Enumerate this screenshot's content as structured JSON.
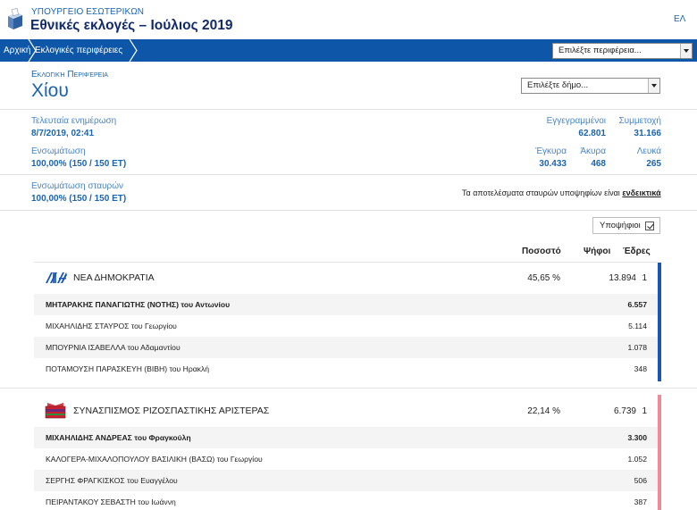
{
  "header": {
    "ministry": "ΥΠΟΥΡΓΕΙΟ ΕΣΩΤΕΡΙΚΩΝ",
    "title": "Εθνικές εκλογές – Ιούλιος 2019",
    "lang": "ΕΛ"
  },
  "breadcrumb": {
    "home": "Αρχική",
    "regions": "Εκλογικές περιφέρειες",
    "region_select_placeholder": "Επιλέξτε περιφέρεια..."
  },
  "region": {
    "label": "Εκλογική Περιφέρεια",
    "name": "Χίου",
    "municipality_select_placeholder": "Επιλέξτε δήμο..."
  },
  "stats": {
    "last_update_label": "Τελευταία ενημέρωση",
    "last_update_value": "8/7/2019, 02:41",
    "integration_label": "Ενσωμάτωση",
    "integration_value": "100,00% (150 / 150 ΕΤ)",
    "registered_label": "Εγγεγραμμένοι",
    "registered_value": "62.801",
    "turnout_label": "Συμμετοχή",
    "turnout_value": "31.166",
    "valid_label": "Έγκυρα",
    "valid_value": "30.433",
    "invalid_label": "Άκυρα",
    "invalid_value": "468",
    "blank_label": "Λευκά",
    "blank_value": "265",
    "crosses_label": "Ενσωμάτωση σταυρών",
    "crosses_value": "100,00% (150 / 150 ΕΤ)",
    "crosses_note_prefix": "Τα αποτελέσματα σταυρών υποψηφίων είναι",
    "crosses_note_link": "ενδεικτικά"
  },
  "results": {
    "candidates_toggle": "Υποψήφιοι",
    "col_percent": "Ποσοστό",
    "col_votes": "Ψήφοι",
    "col_seats": "Έδρες",
    "parties": [
      {
        "name": "ΝΕΑ ΔΗΜΟΚΡΑΤΙΑ",
        "percent": "45,65 %",
        "votes": "13.894",
        "seats": "1",
        "color": "#1a56b5",
        "candidates": [
          {
            "name": "ΜΗΤΑΡΑΚΗΣ ΠΑΝΑΓΙΩΤΗΣ (ΝΟΤΗΣ) του Αντωνίου",
            "votes": "6.557"
          },
          {
            "name": "ΜΙΧΑΗΛΙΔΗΣ ΣΤΑΥΡΟΣ του Γεωργίου",
            "votes": "5.114"
          },
          {
            "name": "ΜΠΟΥΡΝΙΑ ΙΣΑΒΕΛΛΑ του Αδαμαντίου",
            "votes": "1.078"
          },
          {
            "name": "ΠΟΤΑΜΟΥΣΗ ΠΑΡΑΣΚΕΥΗ (ΒΙΒΗ) του Ηρακλή",
            "votes": "348"
          }
        ]
      },
      {
        "name": "ΣΥΝΑΣΠΙΣΜΟΣ ΡΙΖΟΣΠΑΣΤΙΚΗΣ ΑΡΙΣΤΕΡΑΣ",
        "percent": "22,14 %",
        "votes": "6.739",
        "seats": "1",
        "color": "#f08a96",
        "candidates": [
          {
            "name": "ΜΙΧΑΗΛΙΔΗΣ ΑΝΔΡΕΑΣ του Φραγκούλη",
            "votes": "3.300"
          },
          {
            "name": "ΚΑΛΟΓΕΡΑ-ΜΙΧΑΛΟΠΟΥΛΟΥ ΒΑΣΙΛΙΚΗ (ΒΑΣΩ) του Γεωργίου",
            "votes": "1.052"
          },
          {
            "name": "ΣΕΡΓΗΣ ΦΡΑΓΚΙΣΚΟΣ του Ευαγγέλου",
            "votes": "506"
          },
          {
            "name": "ΠΕΙΡΑΝΤΑΚΟΥ ΣΕΒΑΣΤΗ του Ιωάννη",
            "votes": "387"
          }
        ]
      }
    ]
  }
}
